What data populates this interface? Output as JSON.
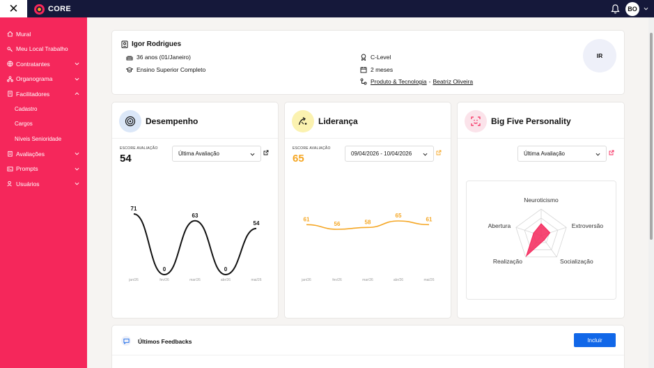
{
  "app": {
    "brand": "CORE",
    "user_initials": "BO"
  },
  "sidebar": {
    "items": [
      {
        "label": "Mural",
        "icon": "home-icon"
      },
      {
        "label": "Meu Local Trabalho",
        "icon": "key-icon"
      },
      {
        "label": "Contratantes",
        "icon": "globe-icon"
      },
      {
        "label": "Organograma",
        "icon": "org-icon"
      },
      {
        "label": "Facilitadores",
        "icon": "document-icon"
      }
    ],
    "subitems": [
      {
        "label": "Cadastro"
      },
      {
        "label": "Cargos"
      },
      {
        "label": "Níveis Senioridade"
      }
    ],
    "items_after": [
      {
        "label": "Avaliações",
        "icon": "clipboard-icon"
      },
      {
        "label": "Prompts",
        "icon": "prompt-icon"
      },
      {
        "label": "Usuários",
        "icon": "users-icon"
      }
    ]
  },
  "profile": {
    "name": "Igor Rodrigues",
    "age": "36 anos (01/Janeiro)",
    "education": "Ensino Superior Completo",
    "level": "C-Level",
    "tenure": "2 meses",
    "department": "Produto & Tecnologia",
    "separator": "-",
    "manager": "Beatriz Oliveira",
    "initials": "IR"
  },
  "performance": {
    "title": "Desempenho",
    "score_label": "ESCORE AVALIAÇÃO",
    "score": "54",
    "select_value": "Última Avaliação",
    "color": "#111111",
    "chart_data": {
      "type": "line",
      "categories": [
        "jan/26",
        "fev/26",
        "mar/26",
        "abr/26",
        "mai/26"
      ],
      "values": [
        71,
        0,
        63,
        0,
        54
      ]
    }
  },
  "leadership": {
    "title": "Liderança",
    "score_label": "ESCORE AVALIAÇÃO",
    "score": "65",
    "select_value": "09/04/2026 - 10/04/2026",
    "color": "#f5a623",
    "chart_data": {
      "type": "line",
      "categories": [
        "jan/26",
        "fev/26",
        "mar/26",
        "abr/26",
        "mai/26"
      ],
      "values": [
        61,
        56,
        58,
        65,
        61
      ]
    }
  },
  "bigfive": {
    "title": "Big Five Personality",
    "select_value": "Última Avaliação",
    "color": "#f5275b",
    "chart_data": {
      "type": "radar",
      "axes": [
        "Neuroticismo",
        "Extroversão",
        "Socialização",
        "Realização",
        "Abertura"
      ],
      "values": [
        0.45,
        0.35,
        0.2,
        0.95,
        0.3
      ]
    }
  },
  "feedbacks": {
    "title": "Últimos Feedbacks",
    "button_label": "Incluir"
  }
}
